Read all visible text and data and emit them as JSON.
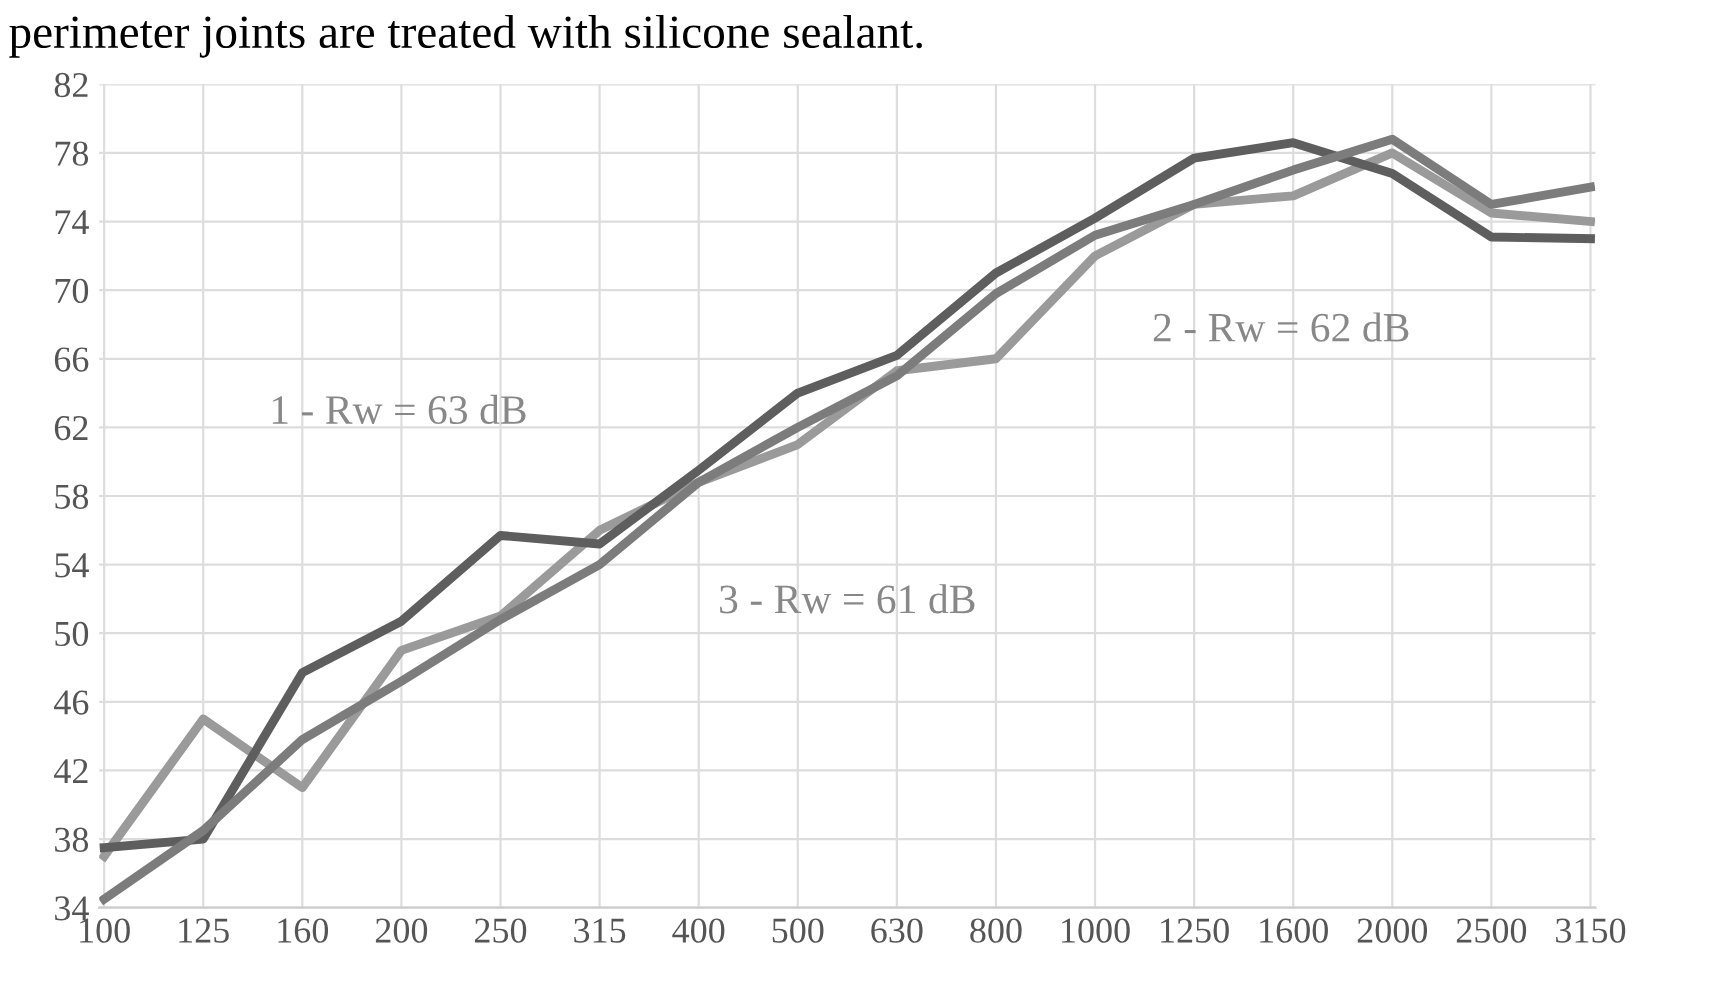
{
  "chart_data": {
    "type": "line",
    "title": "perimeter joints are treated with silicone sealant.",
    "categories": [
      "100",
      "125",
      "160",
      "200",
      "250",
      "315",
      "400",
      "500",
      "630",
      "800",
      "1000",
      "1250",
      "1600",
      "2000",
      "2500",
      "3150"
    ],
    "series": [
      {
        "color": "#9a9a9a",
        "values": [
          37,
          45,
          41,
          49,
          51,
          56,
          58.8,
          61,
          65.3,
          66,
          72,
          75,
          75.5,
          78,
          74.5,
          74
        ]
      },
      {
        "color": "#5e5e5e",
        "values": [
          37.5,
          38,
          47.7,
          50.7,
          55.7,
          55.2,
          59.5,
          64,
          66.2,
          71,
          74.2,
          77.7,
          78.6,
          76.8,
          73.1,
          73
        ]
      },
      {
        "color": "#7c7c7c",
        "values": [
          34.5,
          38.5,
          43.8,
          47.2,
          50.8,
          54,
          58.8,
          62,
          65,
          69.8,
          73.2,
          75,
          77,
          78.8,
          75,
          76
        ]
      }
    ],
    "annotations": [
      "1 - Rw = 63 dB",
      "2 - Rw = 62 dB",
      "3 - Rw = 61 dB"
    ],
    "ylim": [
      34,
      82
    ],
    "yticks": [
      34,
      38,
      42,
      46,
      50,
      54,
      58,
      62,
      66,
      70,
      74,
      78,
      82
    ],
    "grid": true,
    "marker": "none",
    "line_style": "solid"
  }
}
